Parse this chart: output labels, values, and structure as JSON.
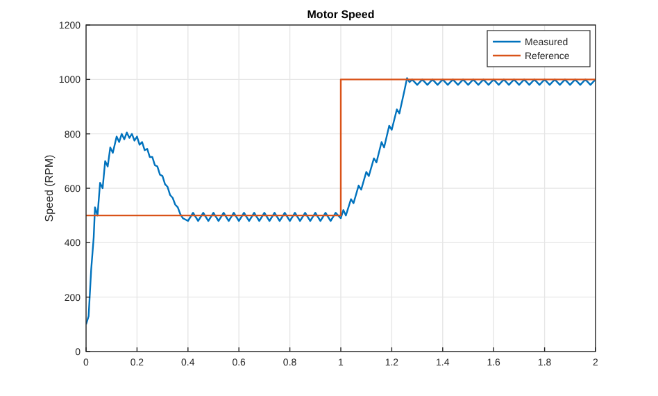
{
  "chart_data": {
    "type": "line",
    "title": "Motor Speed",
    "ylabel": "Speed (RPM)",
    "xlim": [
      0,
      2
    ],
    "ylim": [
      0,
      1200
    ],
    "xticks": [
      0,
      {
        "value": 0.2,
        "label": "0.2"
      },
      {
        "value": 0.4,
        "label": "0.4"
      },
      {
        "value": 0.6,
        "label": "0.6"
      },
      {
        "value": 0.8,
        "label": "0.8"
      },
      1,
      {
        "value": 1.2,
        "label": "1.2"
      },
      {
        "value": 1.4,
        "label": "1.4"
      },
      {
        "value": 1.6,
        "label": "1.6"
      },
      {
        "value": 1.8,
        "label": "1.8"
      },
      2
    ],
    "yticks": [
      0,
      200,
      400,
      600,
      800,
      1000,
      1200
    ],
    "grid": true,
    "legend": "top right",
    "series": [
      {
        "name": "Measured",
        "color": "#0072bd",
        "x": [
          0,
          0.01,
          0.02,
          0.03,
          0.035,
          0.045,
          0.055,
          0.065,
          0.075,
          0.085,
          0.095,
          0.105,
          0.12,
          0.13,
          0.14,
          0.15,
          0.16,
          0.17,
          0.18,
          0.19,
          0.2,
          0.21,
          0.22,
          0.23,
          0.24,
          0.25,
          0.26,
          0.27,
          0.28,
          0.29,
          0.3,
          0.31,
          0.32,
          0.33,
          0.34,
          0.35,
          0.36,
          0.37,
          0.38,
          0.39,
          0.4,
          0.42,
          0.44,
          0.46,
          0.48,
          0.5,
          0.52,
          0.54,
          0.56,
          0.58,
          0.6,
          0.62,
          0.64,
          0.66,
          0.68,
          0.7,
          0.72,
          0.74,
          0.76,
          0.78,
          0.8,
          0.82,
          0.84,
          0.86,
          0.88,
          0.9,
          0.92,
          0.94,
          0.96,
          0.98,
          1.0,
          1.01,
          1.02,
          1.04,
          1.05,
          1.07,
          1.08,
          1.1,
          1.11,
          1.13,
          1.14,
          1.16,
          1.17,
          1.19,
          1.2,
          1.22,
          1.23,
          1.25,
          1.26,
          1.27,
          1.28,
          1.3,
          1.32,
          1.34,
          1.36,
          1.38,
          1.4,
          1.42,
          1.44,
          1.46,
          1.48,
          1.5,
          1.52,
          1.54,
          1.56,
          1.58,
          1.6,
          1.62,
          1.64,
          1.66,
          1.68,
          1.7,
          1.72,
          1.74,
          1.76,
          1.78,
          1.8,
          1.82,
          1.84,
          1.86,
          1.88,
          1.9,
          1.92,
          1.94,
          1.96,
          1.98,
          2.0
        ],
        "values": [
          100,
          130,
          300,
          420,
          530,
          500,
          620,
          600,
          700,
          680,
          750,
          730,
          790,
          770,
          800,
          780,
          805,
          785,
          800,
          775,
          790,
          760,
          770,
          740,
          745,
          715,
          715,
          685,
          680,
          650,
          645,
          615,
          605,
          575,
          565,
          540,
          530,
          505,
          490,
          485,
          480,
          510,
          480,
          510,
          480,
          510,
          480,
          510,
          480,
          510,
          480,
          510,
          480,
          510,
          480,
          510,
          480,
          510,
          480,
          510,
          480,
          510,
          480,
          510,
          480,
          510,
          480,
          510,
          480,
          510,
          490,
          520,
          500,
          560,
          545,
          610,
          595,
          660,
          645,
          710,
          695,
          770,
          750,
          830,
          815,
          890,
          875,
          960,
          1005,
          990,
          1000,
          980,
          1000,
          980,
          1000,
          980,
          1000,
          980,
          1000,
          980,
          1000,
          980,
          1000,
          980,
          1000,
          980,
          1000,
          980,
          1000,
          980,
          1000,
          980,
          1000,
          980,
          1000,
          980,
          1000,
          980,
          1000,
          980,
          1000,
          980,
          1000,
          980,
          1000,
          980,
          1000
        ]
      },
      {
        "name": "Reference",
        "color": "#d95319",
        "type": "step",
        "x": [
          0,
          1,
          2
        ],
        "values": [
          500,
          1000,
          1000
        ]
      }
    ]
  }
}
